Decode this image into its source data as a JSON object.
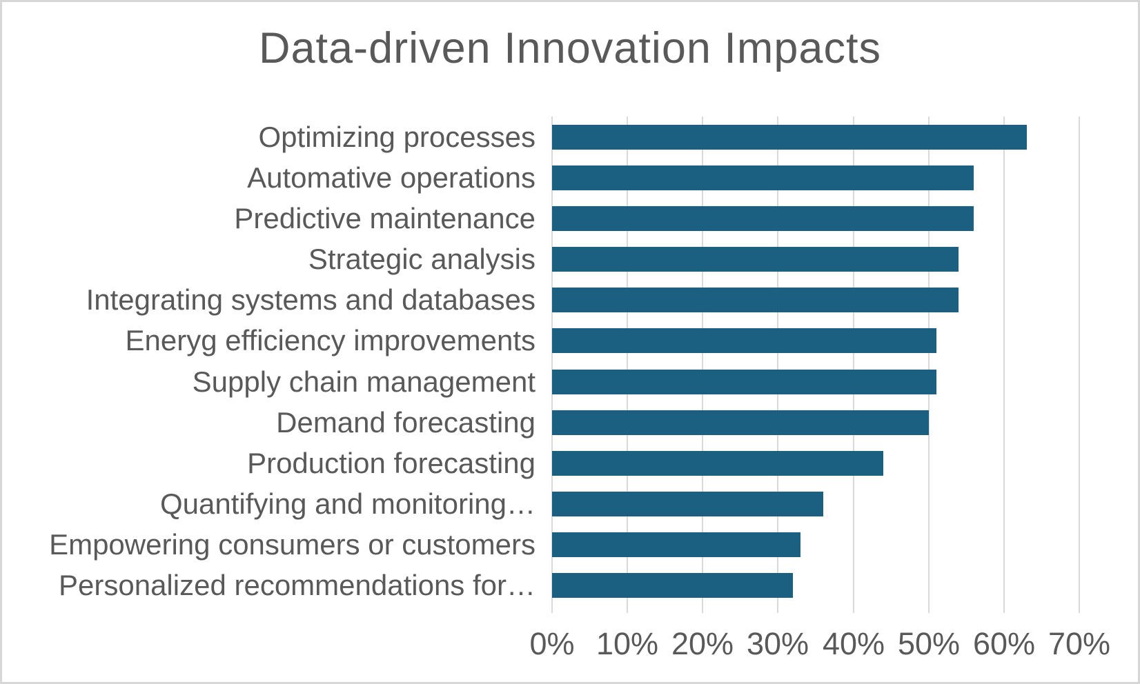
{
  "chart_data": {
    "type": "bar",
    "orientation": "horizontal",
    "title": "Data-driven Innovation Impacts",
    "categories": [
      "Optimizing processes",
      "Automative operations",
      "Predictive maintenance",
      "Strategic analysis",
      "Integrating systems and databases",
      "Eneryg efficiency improvements",
      "Supply chain management",
      "Demand forecasting",
      "Production forecasting",
      "Quantifying and monitoring…",
      "Empowering consumers or customers",
      "Personalized recommendations for…"
    ],
    "values": [
      63,
      56,
      56,
      54,
      54,
      51,
      51,
      50,
      44,
      36,
      33,
      32
    ],
    "value_unit": "%",
    "xlabel": "",
    "ylabel": "",
    "xlim": [
      0,
      70
    ],
    "x_tick_step": 10,
    "x_tick_labels": [
      "0%",
      "10%",
      "20%",
      "30%",
      "40%",
      "50%",
      "60%",
      "70%"
    ],
    "grid": "vertical-gridlines-with-ticks",
    "legend": "none",
    "colors": {
      "bar": "#1c6081",
      "text": "#595959",
      "gridline": "#d9d9d9",
      "background": "#ffffff",
      "frame_border": "#d6d6d6"
    }
  }
}
